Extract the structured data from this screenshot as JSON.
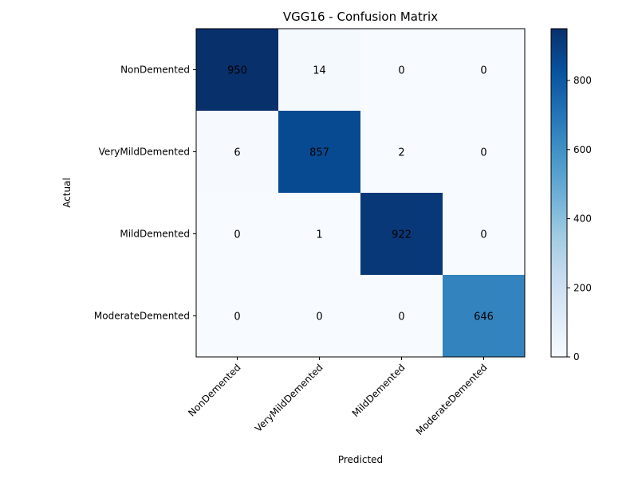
{
  "chart_data": {
    "type": "heatmap",
    "title": "VGG16 - Confusion Matrix",
    "xlabel": "Predicted",
    "ylabel": "Actual",
    "row_labels": [
      "NonDemented",
      "VeryMildDemented",
      "MildDemented",
      "ModerateDemented"
    ],
    "col_labels": [
      "NonDemented",
      "VeryMildDemented",
      "MildDemented",
      "ModerateDemented"
    ],
    "matrix": [
      [
        950,
        14,
        0,
        0
      ],
      [
        6,
        857,
        2,
        0
      ],
      [
        0,
        1,
        922,
        0
      ],
      [
        0,
        0,
        0,
        646
      ]
    ],
    "colorbar": {
      "min": 0,
      "max": 950,
      "ticks": [
        0,
        200,
        400,
        600,
        800
      ]
    },
    "colormap": "Blues",
    "grid": false
  }
}
